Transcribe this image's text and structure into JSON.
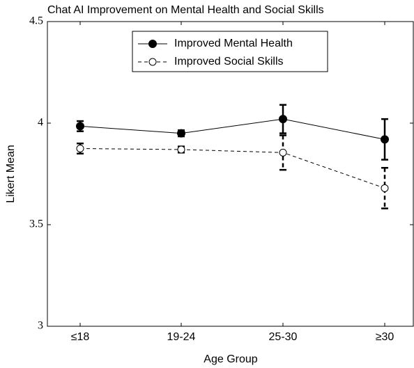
{
  "chart_data": {
    "type": "line",
    "title": "Chat AI Improvement on Mental Health and Social Skills",
    "xlabel": "Age Group",
    "ylabel": "Likert Mean",
    "categories": [
      "≤18",
      "19-24",
      "25-30",
      "≥30"
    ],
    "series": [
      {
        "name": "Improved Mental Health",
        "color": "#000000",
        "dashed": false,
        "marker_filled": true,
        "values": [
          3.985,
          3.95,
          4.02,
          3.92
        ],
        "errors": [
          0.025,
          0.015,
          0.07,
          0.1
        ]
      },
      {
        "name": "Improved Social Skills",
        "color": "#000000",
        "dashed": true,
        "marker_filled": false,
        "values": [
          3.875,
          3.87,
          3.855,
          3.68
        ],
        "errors": [
          0.025,
          0.015,
          0.085,
          0.1
        ]
      }
    ],
    "ylim": [
      3,
      4.5
    ],
    "yticks": [
      3,
      3.5,
      4,
      4.5
    ],
    "grid": false,
    "legend": "top"
  }
}
